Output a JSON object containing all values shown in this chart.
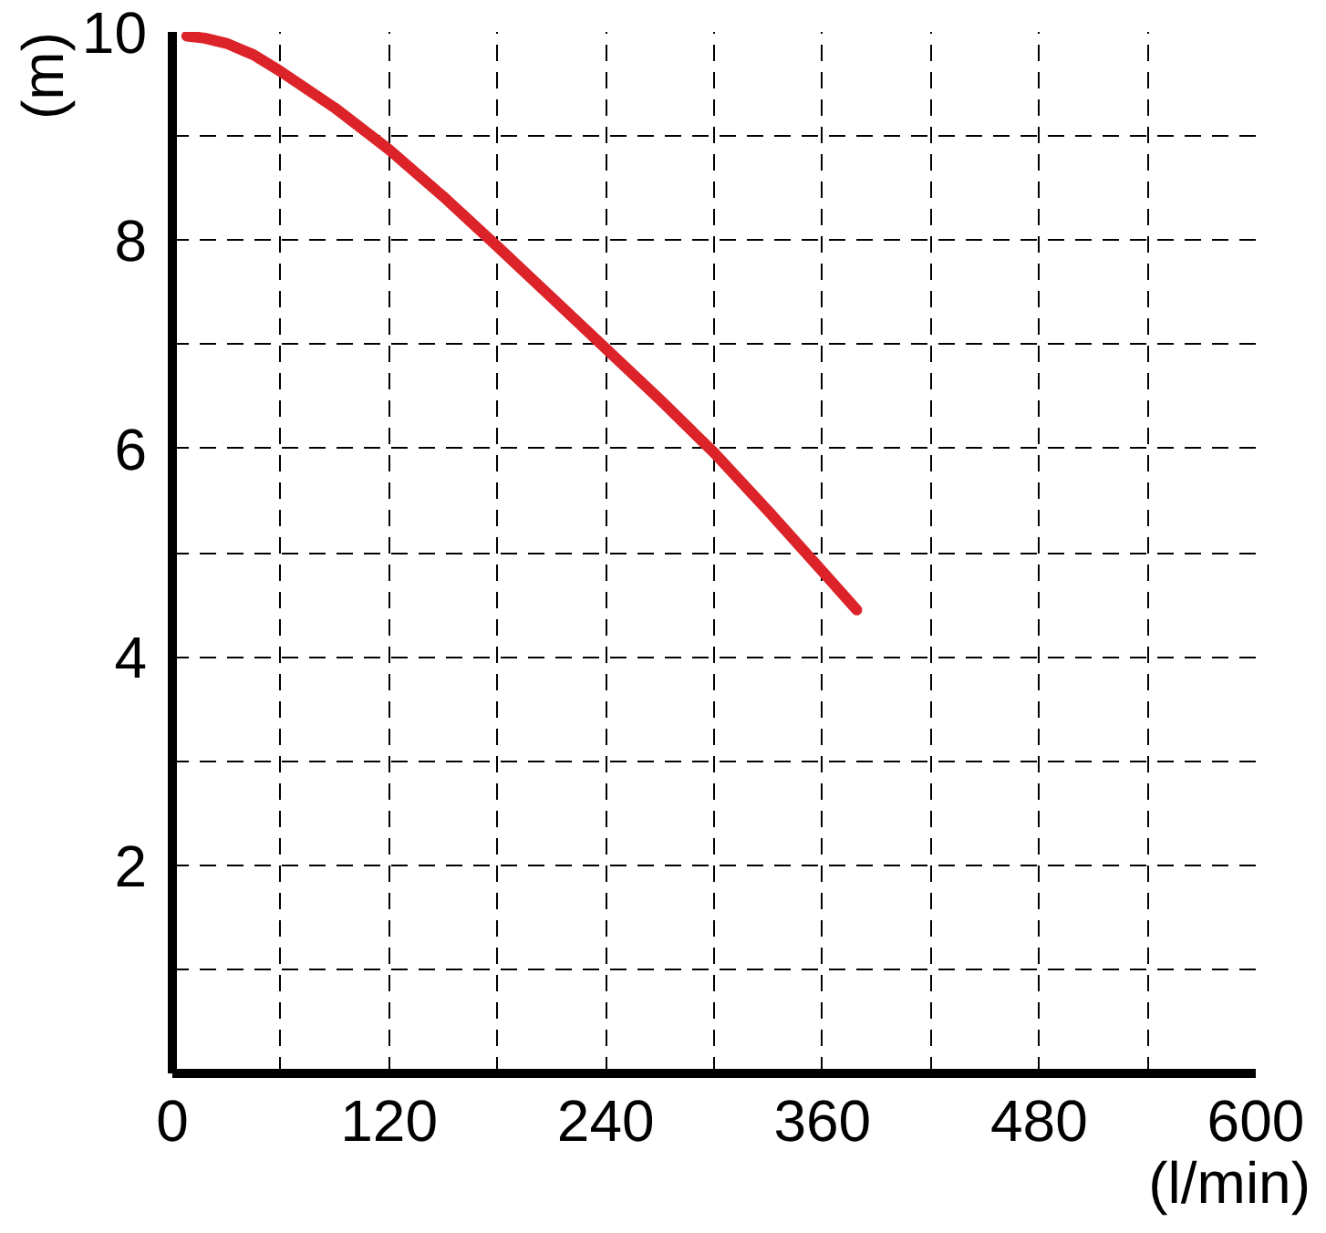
{
  "chart_data": {
    "type": "line",
    "xlabel": "(l/min)",
    "ylabel": "(m)",
    "xlim": [
      0,
      600
    ],
    "ylim": [
      0,
      10
    ],
    "xticks": [
      0,
      {
        "value": 60,
        "label": null
      },
      120,
      {
        "value": 180,
        "label": null
      },
      240,
      {
        "value": 300,
        "label": null
      },
      360,
      {
        "value": 420,
        "label": null
      },
      480,
      {
        "value": 540,
        "label": null
      },
      600
    ],
    "yticks": [
      {
        "value": 1,
        "label": null
      },
      2,
      {
        "value": 3,
        "label": null
      },
      4,
      {
        "value": 5,
        "label": null
      },
      6,
      {
        "value": 7,
        "label": null
      },
      8,
      {
        "value": 9,
        "label": null
      },
      10
    ],
    "grid": true,
    "series": [
      {
        "color": "#dc2329",
        "x": [
          8,
          18,
          30,
          45,
          60,
          90,
          120,
          150,
          180,
          210,
          240,
          270,
          300,
          330,
          360,
          379
        ],
        "values": [
          9.96,
          9.94,
          9.89,
          9.78,
          9.62,
          9.27,
          8.87,
          8.42,
          7.94,
          7.45,
          6.96,
          6.47,
          5.96,
          5.4,
          4.82,
          4.45
        ]
      }
    ]
  }
}
